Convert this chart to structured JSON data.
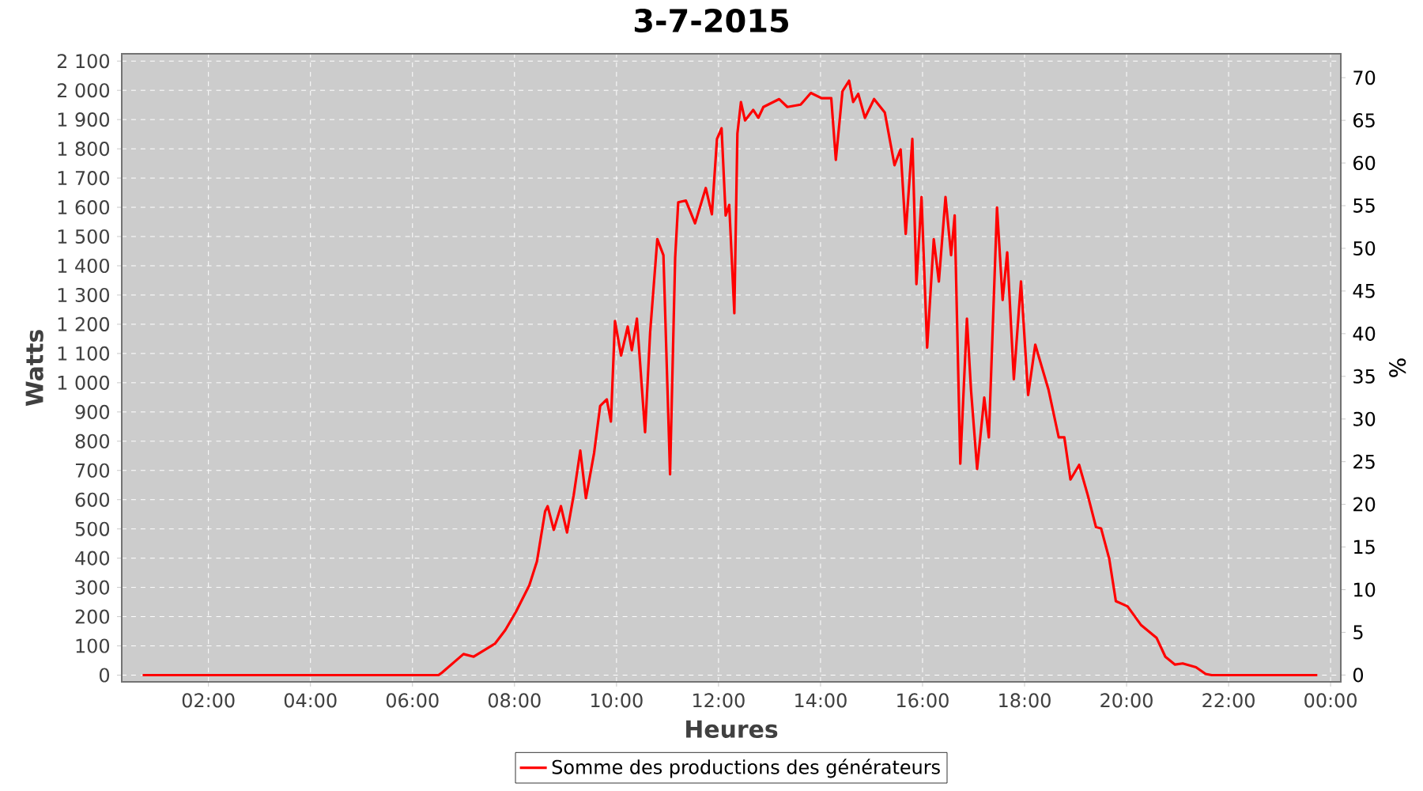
{
  "chart_data": {
    "type": "line",
    "title": "3-7-2015",
    "xlabel": "Heures",
    "ylabel": "Watts",
    "y2label": "%",
    "xlim": [
      0.3,
      24.2
    ],
    "ylim": [
      -23,
      2125
    ],
    "y2lim": [
      -0.8,
      72.8
    ],
    "xticks": [
      {
        "value": 2,
        "label": "02:00"
      },
      {
        "value": 4,
        "label": "04:00"
      },
      {
        "value": 6,
        "label": "06:00"
      },
      {
        "value": 8,
        "label": "08:00"
      },
      {
        "value": 10,
        "label": "10:00"
      },
      {
        "value": 12,
        "label": "12:00"
      },
      {
        "value": 14,
        "label": "14:00"
      },
      {
        "value": 16,
        "label": "16:00"
      },
      {
        "value": 18,
        "label": "18:00"
      },
      {
        "value": 20,
        "label": "20:00"
      },
      {
        "value": 22,
        "label": "22:00"
      },
      {
        "value": 24,
        "label": "00:00"
      }
    ],
    "yticks": [
      0,
      100,
      200,
      300,
      400,
      500,
      600,
      700,
      800,
      900,
      {
        "value": 1000,
        "label": "1 000"
      },
      {
        "value": 1100,
        "label": "1 100"
      },
      {
        "value": 1200,
        "label": "1 200"
      },
      {
        "value": 1300,
        "label": "1 300"
      },
      {
        "value": 1400,
        "label": "1 400"
      },
      {
        "value": 1500,
        "label": "1 500"
      },
      {
        "value": 1600,
        "label": "1 600"
      },
      {
        "value": 1700,
        "label": "1 700"
      },
      {
        "value": 1800,
        "label": "1 800"
      },
      {
        "value": 1900,
        "label": "1 900"
      },
      {
        "value": 2000,
        "label": "2 000"
      },
      {
        "value": 2100,
        "label": "2 100"
      }
    ],
    "y2ticks": [
      0,
      5,
      10,
      15,
      20,
      25,
      30,
      35,
      40,
      45,
      50,
      55,
      60,
      65,
      70
    ],
    "grid": true,
    "legend": "bottom",
    "series": [
      {
        "name": "Somme des productions des générateurs",
        "color": "#ff0000",
        "x": [
          0.71,
          2.0,
          4.0,
          6.0,
          6.51,
          6.58,
          7.0,
          7.2,
          7.62,
          7.82,
          8.03,
          8.29,
          8.44,
          8.6,
          8.65,
          8.77,
          8.91,
          9.03,
          9.16,
          9.29,
          9.4,
          9.56,
          9.68,
          9.81,
          9.89,
          9.97,
          10.09,
          10.22,
          10.3,
          10.4,
          10.56,
          10.66,
          10.8,
          10.92,
          11.05,
          11.15,
          11.21,
          11.36,
          11.54,
          11.75,
          11.87,
          11.97,
          12.06,
          12.14,
          12.21,
          12.31,
          12.37,
          12.44,
          12.52,
          12.68,
          12.78,
          12.88,
          13.19,
          13.35,
          13.61,
          13.81,
          14.02,
          14.21,
          14.3,
          14.43,
          14.56,
          14.64,
          14.74,
          14.87,
          15.05,
          15.26,
          15.45,
          15.57,
          15.67,
          15.8,
          15.88,
          15.98,
          16.09,
          16.22,
          16.32,
          16.45,
          16.56,
          16.63,
          16.74,
          16.87,
          16.95,
          17.07,
          17.21,
          17.3,
          17.46,
          17.57,
          17.66,
          17.79,
          17.93,
          18.07,
          18.21,
          18.47,
          18.67,
          18.78,
          18.9,
          19.07,
          19.24,
          19.4,
          19.5,
          19.66,
          19.79,
          20.02,
          20.28,
          20.59,
          20.76,
          20.95,
          21.1,
          21.36,
          21.55,
          21.67,
          22.5,
          23.74
        ],
        "values": [
          0,
          0,
          0,
          0,
          0,
          9,
          72,
          63,
          108,
          154,
          217,
          307,
          389,
          560,
          578,
          497,
          578,
          488,
          615,
          768,
          605,
          759,
          921,
          943,
          867,
          1211,
          1093,
          1192,
          1111,
          1219,
          831,
          1174,
          1491,
          1436,
          687,
          1428,
          1617,
          1623,
          1545,
          1666,
          1576,
          1834,
          1870,
          1572,
          1608,
          1238,
          1852,
          1960,
          1897,
          1933,
          1906,
          1943,
          1970,
          1943,
          1951,
          1991,
          1973,
          1973,
          1762,
          1997,
          2033,
          1960,
          1988,
          1906,
          1970,
          1924,
          1744,
          1798,
          1509,
          1834,
          1337,
          1635,
          1120,
          1491,
          1346,
          1635,
          1436,
          1572,
          723,
          1219,
          976,
          705,
          949,
          813,
          1599,
          1283,
          1446,
          1012,
          1346,
          958,
          1130,
          976,
          813,
          813,
          669,
          719,
          615,
          506,
          502,
          398,
          253,
          235,
          172,
          127,
          63,
          36,
          40,
          27,
          4,
          0,
          0,
          0
        ]
      }
    ]
  }
}
